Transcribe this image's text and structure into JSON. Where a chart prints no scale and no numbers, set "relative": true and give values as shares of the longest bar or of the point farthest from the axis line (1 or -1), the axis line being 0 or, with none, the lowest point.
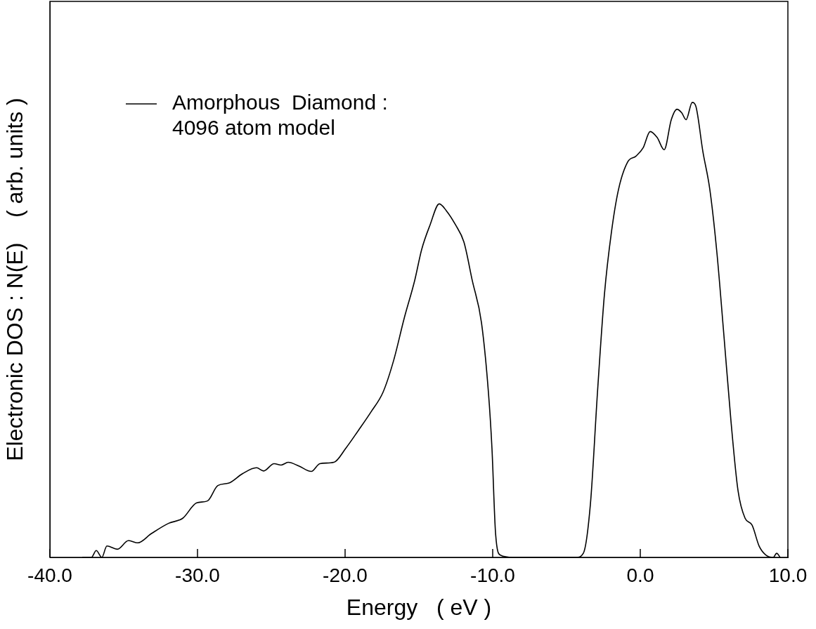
{
  "chart_data": {
    "type": "line",
    "xlabel": "Energy   ( eV )",
    "ylabel": "Electronic DOS : N(E)    ( arb. units )",
    "relative": true,
    "legend": "top left",
    "marker": "none",
    "line_style": "solid",
    "grid": false,
    "xlim": [
      -40,
      10
    ],
    "xticks": [
      {
        "value": -40,
        "label": "-40.0"
      },
      {
        "value": -30,
        "label": "-30.0"
      },
      {
        "value": -20,
        "label": "-20.0"
      },
      {
        "value": -10,
        "label": "-10.0"
      },
      {
        "value": 0,
        "label": "0.0"
      },
      {
        "value": 10,
        "label": "10.0"
      }
    ],
    "series": [
      {
        "name": "Amorphous  Diamond :\n4096 atom model",
        "color": "#000000",
        "x": [
          -37.81,
          -37.19,
          -36.86,
          -36.48,
          -36.14,
          -35.43,
          -34.67,
          -34.05,
          -33.14,
          -31.95,
          -31.0,
          -30.05,
          -29.33,
          -28.62,
          -27.9,
          -26.95,
          -26.0,
          -25.52,
          -24.81,
          -24.33,
          -23.86,
          -23.14,
          -22.29,
          -21.71,
          -20.76,
          -19.95,
          -19.1,
          -18.24,
          -17.43,
          -16.71,
          -16.0,
          -15.29,
          -14.81,
          -14.24,
          -13.62,
          -13.14,
          -12.52,
          -11.95,
          -11.38,
          -10.76,
          -10.29,
          -10.05,
          -9.81,
          -9.48,
          -8.62,
          -4.33,
          -3.86,
          -3.38,
          -2.9,
          -2.43,
          -1.95,
          -1.48,
          -0.86,
          -0.29,
          0.19,
          0.67,
          1.14,
          1.62,
          2.1,
          2.48,
          2.81,
          3.1,
          3.52,
          3.76,
          4.24,
          4.71,
          5.19,
          5.67,
          6.14,
          6.62,
          7.1,
          7.57,
          8.05,
          8.52,
          9.0,
          9.24,
          9.48
        ],
        "values": [
          0,
          0,
          0.015,
          0,
          0.025,
          0.018,
          0.037,
          0.032,
          0.052,
          0.075,
          0.086,
          0.12,
          0.124,
          0.158,
          0.163,
          0.184,
          0.197,
          0.19,
          0.206,
          0.203,
          0.209,
          0.201,
          0.189,
          0.206,
          0.209,
          0.24,
          0.279,
          0.32,
          0.363,
          0.433,
          0.525,
          0.608,
          0.677,
          0.731,
          0.777,
          0.762,
          0.731,
          0.693,
          0.608,
          0.516,
          0.363,
          0.24,
          0.055,
          0.005,
          0,
          0,
          0.009,
          0.117,
          0.363,
          0.578,
          0.716,
          0.808,
          0.869,
          0.882,
          0.9,
          0.936,
          0.923,
          0.896,
          0.962,
          0.985,
          0.977,
          0.962,
          1,
          0.992,
          0.892,
          0.809,
          0.67,
          0.486,
          0.301,
          0.147,
          0.086,
          0.071,
          0.025,
          0.005,
          0,
          0.009,
          0
        ]
      }
    ]
  }
}
